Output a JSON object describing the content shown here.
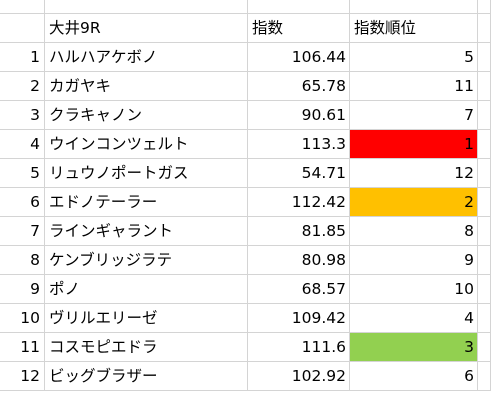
{
  "header": {
    "num": "",
    "name": "大井9R",
    "index": "指数",
    "rank": "指数順位"
  },
  "highlight_colors": {
    "red": "#ff0000",
    "orange": "#ffc000",
    "green": "#92d050"
  },
  "rows": [
    {
      "num": "1",
      "name": "ハルハアケボノ",
      "index": "106.44",
      "rank": "5",
      "highlight": ""
    },
    {
      "num": "2",
      "name": "カガヤキ",
      "index": "65.78",
      "rank": "11",
      "highlight": ""
    },
    {
      "num": "3",
      "name": "クラキャノン",
      "index": "90.61",
      "rank": "7",
      "highlight": ""
    },
    {
      "num": "4",
      "name": "ウインコンツェルト",
      "index": "113.3",
      "rank": "1",
      "highlight": "red"
    },
    {
      "num": "5",
      "name": "リュウノポートガス",
      "index": "54.71",
      "rank": "12",
      "highlight": ""
    },
    {
      "num": "6",
      "name": "エドノテーラー",
      "index": "112.42",
      "rank": "2",
      "highlight": "orange"
    },
    {
      "num": "7",
      "name": "ラインギャラント",
      "index": "81.85",
      "rank": "8",
      "highlight": ""
    },
    {
      "num": "8",
      "name": "ケンブリッジラテ",
      "index": "80.98",
      "rank": "9",
      "highlight": ""
    },
    {
      "num": "9",
      "name": "ポノ",
      "index": "68.57",
      "rank": "10",
      "highlight": ""
    },
    {
      "num": "10",
      "name": "ヴリルエリーゼ",
      "index": "109.42",
      "rank": "4",
      "highlight": ""
    },
    {
      "num": "11",
      "name": "コスモピエドラ",
      "index": "111.6",
      "rank": "3",
      "highlight": "green"
    },
    {
      "num": "12",
      "name": "ビッグブラザー",
      "index": "102.92",
      "rank": "6",
      "highlight": ""
    }
  ]
}
